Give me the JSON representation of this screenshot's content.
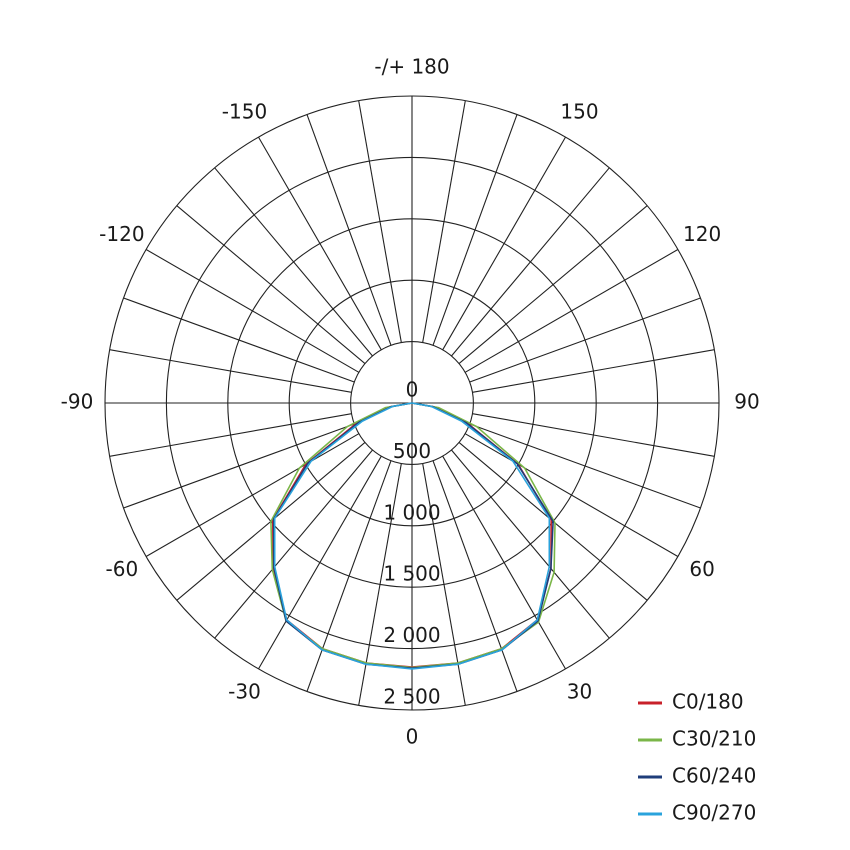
{
  "chart_data": {
    "type": "polar",
    "x": [
      -90,
      -80,
      -70,
      -60,
      -50,
      -40,
      -30,
      -20,
      -10,
      0,
      10,
      20,
      30,
      40,
      50,
      60,
      70,
      80,
      90
    ],
    "series": [
      {
        "name": "C0/180",
        "color": "#c8202a",
        "values": [
          0,
          180,
          480,
          1000,
          1480,
          1760,
          2040,
          2130,
          2150,
          2150,
          2150,
          2130,
          2040,
          1760,
          1480,
          1000,
          480,
          180,
          0
        ]
      },
      {
        "name": "C30/210",
        "color": "#7ab648",
        "values": [
          0,
          220,
          560,
          1060,
          1500,
          1770,
          2050,
          2130,
          2150,
          2155,
          2150,
          2130,
          2060,
          1800,
          1520,
          1060,
          560,
          220,
          0
        ]
      },
      {
        "name": "C60/240",
        "color": "#1f3d7a",
        "values": [
          0,
          170,
          460,
          980,
          1470,
          1750,
          2050,
          2140,
          2160,
          2160,
          2160,
          2140,
          2050,
          1760,
          1500,
          990,
          470,
          170,
          0
        ]
      },
      {
        "name": "C90/270",
        "color": "#2aa3dc",
        "values": [
          0,
          160,
          430,
          950,
          1460,
          1740,
          2040,
          2140,
          2160,
          2165,
          2160,
          2140,
          2040,
          1740,
          1460,
          950,
          430,
          160,
          0
        ]
      }
    ],
    "ylim": [
      0,
      2500
    ],
    "yticks": [
      0,
      500,
      {
        "value": 1000,
        "label": "1 000"
      },
      {
        "value": 1500,
        "label": "1 500"
      },
      {
        "value": 2000,
        "label": "2 000"
      },
      {
        "value": 2500,
        "label": "2 500"
      }
    ],
    "xticks": [
      0,
      30,
      60,
      90,
      120,
      150,
      {
        "value": 180,
        "label": "-/+ 180"
      },
      -150,
      -120,
      -90,
      -60,
      -30
    ],
    "legend": "bottom-right"
  }
}
